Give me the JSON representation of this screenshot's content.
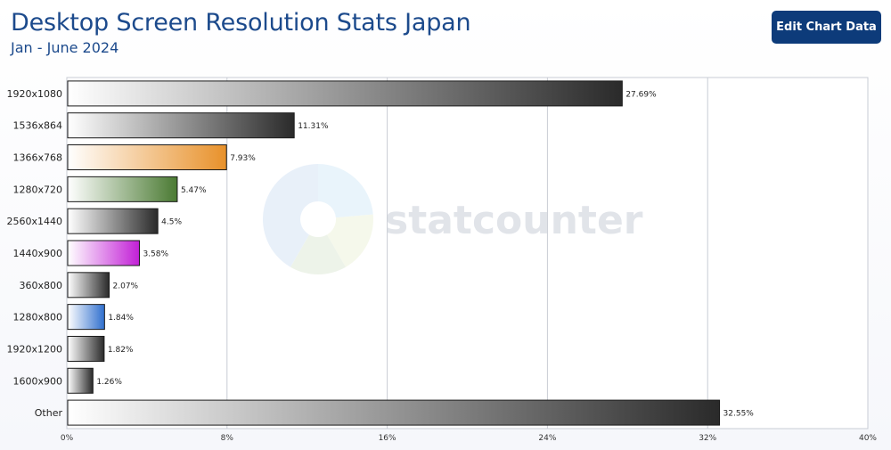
{
  "header": {
    "title": "Desktop Screen Resolution Stats Japan",
    "subtitle": "Jan - June 2024",
    "edit_button_label": "Edit Chart Data"
  },
  "watermark": {
    "text": "statcounter"
  },
  "colors": {
    "dark_bar": "#2a2a2a",
    "orange_bar": "#e8912a",
    "green_bar": "#4a7a32",
    "purple_bar": "#c21fd6",
    "blue_bar": "#2f6fce",
    "title": "#1c4a8c",
    "button": "#0d3b7a"
  },
  "chart_data": {
    "type": "bar",
    "orientation": "horizontal",
    "title": "Desktop Screen Resolution Stats Japan",
    "subtitle": "Jan - June 2024",
    "categories": [
      "1920x1080",
      "1536x864",
      "1366x768",
      "1280x720",
      "2560x1440",
      "1440x900",
      "360x800",
      "1280x800",
      "1920x1200",
      "1600x900",
      "Other"
    ],
    "values": [
      27.69,
      11.31,
      7.93,
      5.47,
      4.5,
      3.58,
      2.07,
      1.84,
      1.82,
      1.26,
      32.55
    ],
    "value_labels": [
      "27.69%",
      "11.31%",
      "7.93%",
      "5.47%",
      "4.5%",
      "3.58%",
      "2.07%",
      "1.84%",
      "1.82%",
      "1.26%",
      "32.55%"
    ],
    "bar_colors": [
      "#2a2a2a",
      "#2a2a2a",
      "#e8912a",
      "#4a7a32",
      "#2a2a2a",
      "#c21fd6",
      "#2a2a2a",
      "#2f6fce",
      "#2a2a2a",
      "#2a2a2a",
      "#2a2a2a"
    ],
    "xlim": [
      0,
      40
    ],
    "x_ticks": [
      0,
      8,
      16,
      24,
      32,
      40
    ],
    "x_tick_labels": [
      "0%",
      "8%",
      "16%",
      "24%",
      "32%",
      "40%"
    ],
    "grid": true,
    "legend": "none"
  }
}
